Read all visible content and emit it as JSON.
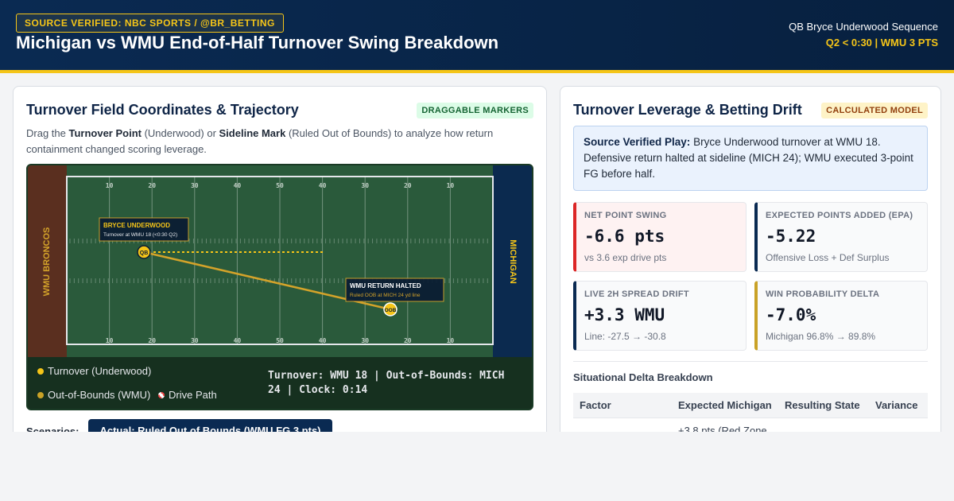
{
  "header": {
    "source_badge": "SOURCE VERIFIED: NBC SPORTS / @BR_BETTING",
    "title": "Michigan vs WMU End-of-Half Turnover Swing Breakdown",
    "right_line1": "QB Bryce Underwood Sequence",
    "right_line2": "Q2 < 0:30 | WMU 3 PTS"
  },
  "left_card": {
    "title": "Turnover Field Coordinates & Trajectory",
    "tag": "DRAGGABLE MARKERS",
    "desc_1": "Drag the ",
    "desc_bold_1": "Turnover Point",
    "desc_2": " (Underwood) or ",
    "desc_bold_2": "Sideline Mark",
    "desc_3": " (Ruled Out of Bounds) to analyze how return containment changed scoring leverage.",
    "field": {
      "left_endzone": "WMU BRONCOS",
      "right_endzone": "MICHIGAN",
      "yard_numbers": [
        "10",
        "20",
        "30",
        "40",
        "50",
        "40",
        "30",
        "20",
        "10"
      ],
      "turnover_marker": "QB",
      "oob_marker": "OOB",
      "turnover_label_title": "BRYCE UNDERWOOD",
      "turnover_label_sub": "Turnover at WMU 18 (<0:30 Q2)",
      "oob_label_title": "WMU RETURN HALTED",
      "oob_label_sub": "Ruled OOB at MICH 24 yd line"
    },
    "legend": {
      "turnover": "Turnover (Underwood)",
      "oob": "Out-of-Bounds (WMU)",
      "drive": "Drive Path"
    },
    "readout": "Turnover: WMU 18 | Out-of-Bounds: MICH 24 | Clock: 0:14",
    "scenarios_label": "Scenarios:",
    "scenario_active": "Actual: Ruled Out of Bounds (WMU FG 3 pts)"
  },
  "right_card": {
    "title": "Turnover Leverage & Betting Drift",
    "tag": "CALCULATED MODEL",
    "callout_bold": "Source Verified Play:",
    "callout_text": " Bryce Underwood turnover at WMU 18. Defensive return halted at sideline (MICH 24); WMU executed 3-point FG before half.",
    "metrics": [
      {
        "label": "NET POINT SWING",
        "value": "-6.6 pts",
        "sub": "vs 3.6 exp drive pts"
      },
      {
        "label": "EXPECTED POINTS ADDED (EPA)",
        "value": "-5.22",
        "sub": "Offensive Loss + Def Surplus"
      },
      {
        "label": "LIVE 2H SPREAD DRIFT",
        "value": "+3.3 WMU",
        "sub": "Line: -27.5 → -30.8"
      },
      {
        "label": "WIN PROBABILITY DELTA",
        "value": "-7.0%",
        "sub": "Michigan 96.8% → 89.8%"
      }
    ],
    "section_title": "Situational Delta Breakdown",
    "table_headers": [
      "Factor",
      "Expected Michigan",
      "Resulting State",
      "Variance"
    ],
    "table_row_partial": [
      "",
      "+3.8 pts (Red Zone",
      "",
      ""
    ]
  },
  "colors": {
    "navy": "#0a2a52",
    "gold": "#f5c518",
    "field_green": "#2a5a3b",
    "wmu_brown": "#5a2f1f"
  }
}
